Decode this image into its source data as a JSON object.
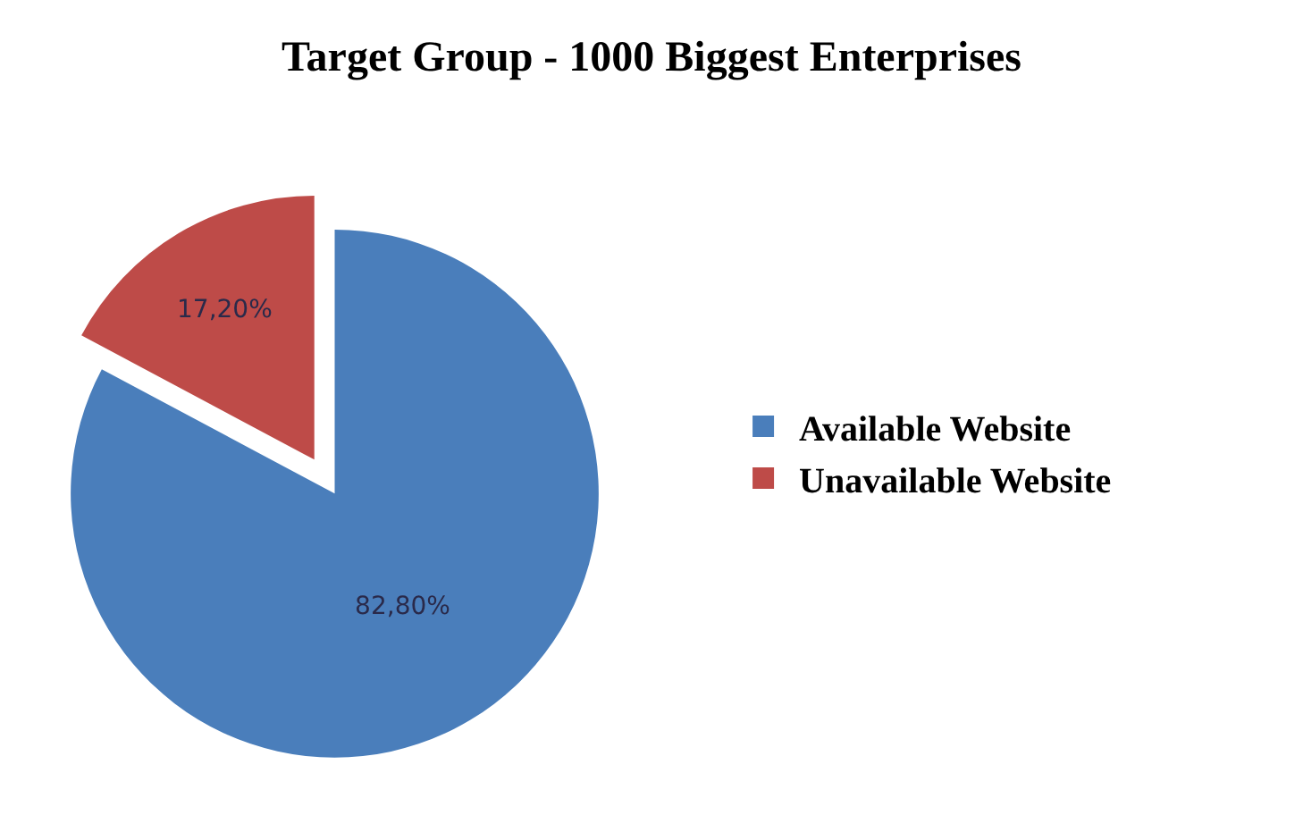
{
  "chart_data": {
    "type": "pie",
    "title": "Target Group - 1000 Biggest Enterprises",
    "categories": [
      "Available Website",
      "Unavailable Website"
    ],
    "values": [
      82.8,
      17.2
    ],
    "colors": [
      "#4a7ebb",
      "#be4b48"
    ],
    "value_labels": [
      "82,80%",
      "17,20%"
    ],
    "legend": "right"
  }
}
